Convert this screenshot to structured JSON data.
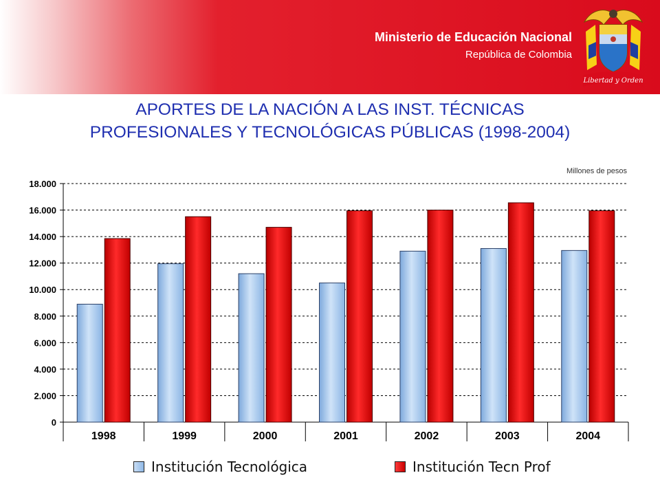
{
  "header": {
    "ministry_name": "Ministerio de Educación Nacional",
    "country": "República de Colombia",
    "emblem_icon": "coat-of-arms-colombia-icon",
    "motto": "Libertad y Orden"
  },
  "title_lines": [
    "APORTES DE LA NACIÓN A LAS INST. TÉCNICAS",
    "PROFESIONALES Y TECNOLÓGICAS PÚBLICAS (1998-2004)"
  ],
  "units_note": "Millones de pesos",
  "colors": {
    "title": "#1f2fb0",
    "header_red": "#d90b1c",
    "series_blue": "#9cc3ec",
    "series_red": "#e00000"
  },
  "chart_data": {
    "type": "bar",
    "title": "APORTES DE LA NACIÓN A LAS INST. TÉCNICAS PROFESIONALES Y TECNOLÓGICAS PÚBLICAS (1998-2004)",
    "xlabel": "",
    "ylabel": "Millones de pesos",
    "categories": [
      "1998",
      "1999",
      "2000",
      "2001",
      "2002",
      "2003",
      "2004"
    ],
    "series": [
      {
        "name": "Institución Tecnológica",
        "color": "#9cc3ec",
        "values": [
          8900,
          11950,
          11200,
          10500,
          12900,
          13100,
          12950
        ]
      },
      {
        "name": "Institución Tecn Prof",
        "color": "#e00000",
        "values": [
          13850,
          15500,
          14700,
          15950,
          16000,
          16550,
          15950
        ]
      }
    ],
    "ylim": [
      0,
      18000
    ],
    "yticks": [
      0,
      2000,
      4000,
      6000,
      8000,
      10000,
      12000,
      14000,
      16000,
      18000
    ],
    "ytick_labels": [
      "0",
      "2.000",
      "4.000",
      "6.000",
      "8.000",
      "10.000",
      "12.000",
      "14.000",
      "16.000",
      "18.000"
    ],
    "grid": true,
    "legend_position": "bottom"
  }
}
